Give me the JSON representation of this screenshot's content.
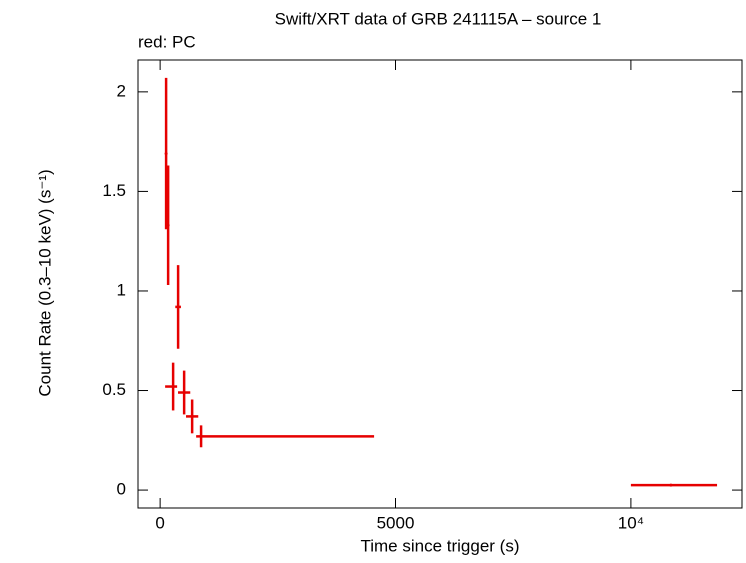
{
  "chart_data": {
    "type": "scatter",
    "title": "Swift/XRT data of GRB 241115A – source 1",
    "subtitle": "red: PC",
    "x_label": "Time since trigger (s)",
    "y_label": "Count Rate (0.3–10 keV) (s⁻¹)",
    "xlim": [
      -470,
      12360
    ],
    "ylim": [
      -0.09,
      2.16
    ],
    "xticks": [
      0,
      5000,
      {
        "value": 10000,
        "label": "10⁴"
      }
    ],
    "yticks": [
      0,
      0.5,
      1,
      1.5,
      2
    ],
    "series": [
      {
        "name": "PC",
        "color": "#e60000",
        "x": [
          127,
          170,
          382,
          276,
          510,
          680,
          870,
          10850
        ],
        "xerr_minus": [
          10,
          15,
          60,
          170,
          130,
          130,
          105,
          850
        ],
        "xerr_plus": [
          10,
          15,
          60,
          85,
          130,
          130,
          3675,
          980
        ],
        "values": [
          1.69,
          1.33,
          0.92,
          0.52,
          0.49,
          0.37,
          0.27,
          0.025
        ],
        "yerr": [
          0.38,
          0.3,
          0.21,
          0.12,
          0.11,
          0.085,
          0.055,
          0.005
        ]
      }
    ]
  }
}
